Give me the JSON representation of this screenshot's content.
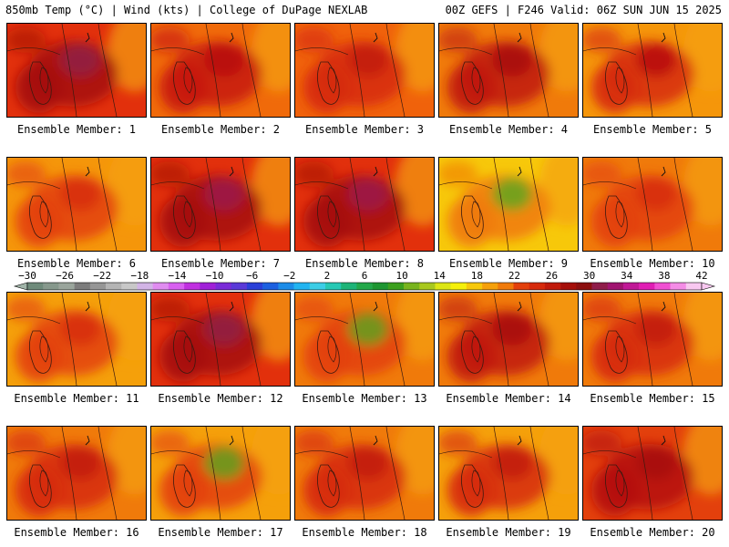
{
  "header": {
    "left": "850mb Temp (°C) | Wind (kts) | College of DuPage NEXLAB",
    "right": "00Z GEFS | F246 Valid: 06Z SUN JUN 15 2025"
  },
  "member_label_prefix": "Ensemble Member:",
  "members": [
    {
      "id": 1,
      "label": "Ensemble Member: 1",
      "base": "#e2300c",
      "core": "#a50f0a",
      "hot": "#8f1d4a"
    },
    {
      "id": 2,
      "label": "Ensemble Member: 2",
      "base": "#f06a0a",
      "core": "#c7190b",
      "hot": "#b50d0d"
    },
    {
      "id": 3,
      "label": "Ensemble Member: 3",
      "base": "#f0620b",
      "core": "#d62a0c",
      "hot": "#c01a0b"
    },
    {
      "id": 4,
      "label": "Ensemble Member: 4",
      "base": "#f07a0a",
      "core": "#c01a0b",
      "hot": "#a50f0a"
    },
    {
      "id": 5,
      "label": "Ensemble Member: 5",
      "base": "#f5960a",
      "core": "#d62a0c",
      "hot": "#b50d0d"
    },
    {
      "id": 6,
      "label": "Ensemble Member: 6",
      "base": "#f5960a",
      "core": "#e3400c",
      "hot": "#d62a0c"
    },
    {
      "id": 7,
      "label": "Ensemble Member: 7",
      "base": "#e2300c",
      "core": "#a50f0a",
      "hot": "#9a1450"
    },
    {
      "id": 8,
      "label": "Ensemble Member: 8",
      "base": "#e2300c",
      "core": "#a50f0a",
      "hot": "#9a1450"
    },
    {
      "id": 9,
      "label": "Ensemble Member: 9",
      "base": "#f7c80a",
      "core": "#f07a0a",
      "hot": "#5aa81e"
    },
    {
      "id": 10,
      "label": "Ensemble Member: 10",
      "base": "#f07a0a",
      "core": "#e3400c",
      "hot": "#d62a0c"
    },
    {
      "id": 11,
      "label": "Ensemble Member: 11",
      "base": "#f5a00a",
      "core": "#e3400c",
      "hot": "#d62a0c"
    },
    {
      "id": 12,
      "label": "Ensemble Member: 12",
      "base": "#e2300c",
      "core": "#a50f0a",
      "hot": "#8f1d4a"
    },
    {
      "id": 13,
      "label": "Ensemble Member: 13",
      "base": "#f07a0a",
      "core": "#e3400c",
      "hot": "#5aa81e"
    },
    {
      "id": 14,
      "label": "Ensemble Member: 14",
      "base": "#f07a0a",
      "core": "#c01a0b",
      "hot": "#a50f0a"
    },
    {
      "id": 15,
      "label": "Ensemble Member: 15",
      "base": "#f07a0a",
      "core": "#d62a0c",
      "hot": "#c01a0b"
    },
    {
      "id": 16,
      "label": "Ensemble Member: 16",
      "base": "#f07a0a",
      "core": "#d62a0c",
      "hot": "#c01a0b"
    },
    {
      "id": 17,
      "label": "Ensemble Member: 17",
      "base": "#f5a00a",
      "core": "#e3400c",
      "hot": "#5aa81e"
    },
    {
      "id": 18,
      "label": "Ensemble Member: 18",
      "base": "#f07a0a",
      "core": "#d62a0c",
      "hot": "#c01a0b"
    },
    {
      "id": 19,
      "label": "Ensemble Member: 19",
      "base": "#f5a00a",
      "core": "#d62a0c",
      "hot": "#c01a0b"
    },
    {
      "id": 20,
      "label": "Ensemble Member: 20",
      "base": "#e3400c",
      "core": "#b50d0d",
      "hot": "#a50f0a"
    }
  ],
  "colorbar": {
    "tick_labels": [
      "−30",
      "−26",
      "−22",
      "−18",
      "−14",
      "−10",
      "−6",
      "−2",
      "2",
      "6",
      "10",
      "14",
      "18",
      "22",
      "26",
      "30",
      "34",
      "38",
      "42"
    ],
    "colors": [
      "#6e8a7a",
      "#86988c",
      "#9aa59c",
      "#7c7c7c",
      "#969696",
      "#b4b4b4",
      "#c8c8c8",
      "#d2b4e6",
      "#e08cf0",
      "#d860f0",
      "#c030e0",
      "#a020d8",
      "#7a2bd8",
      "#5a3ad8",
      "#2a40d8",
      "#1c60e0",
      "#1c8ce8",
      "#22b4f0",
      "#3ccde6",
      "#26c8b4",
      "#1eb478",
      "#23a84a",
      "#1e9632",
      "#3ca01e",
      "#78b41e",
      "#a8c81e",
      "#dce614",
      "#f5f00a",
      "#f7c80a",
      "#f5a00a",
      "#f07a0a",
      "#e3400c",
      "#d62a0c",
      "#c01a0b",
      "#a50f0a",
      "#8c0f0f",
      "#8f1d4a",
      "#a01470",
      "#c01896",
      "#e01eb4",
      "#f050d2",
      "#f48ce6",
      "#f8c8f0"
    ]
  }
}
